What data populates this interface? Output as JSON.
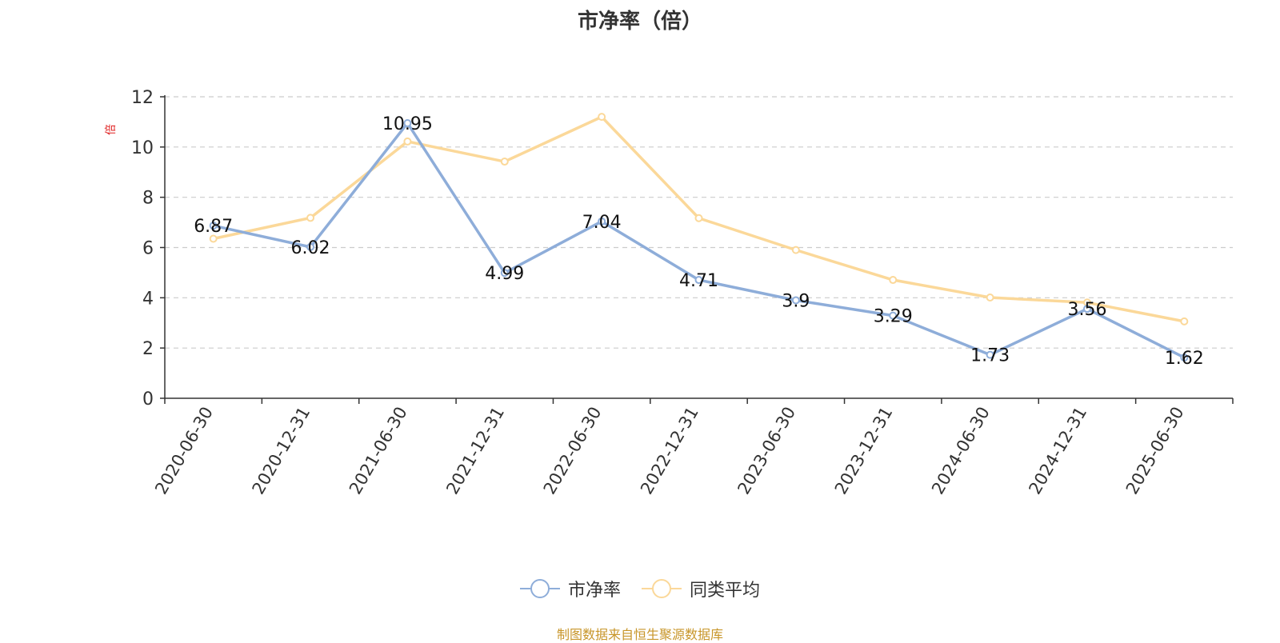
{
  "chart_data": {
    "type": "line",
    "title": "市净率（倍）",
    "ylabel": "倍",
    "xlabel": "",
    "categories": [
      "2020-06-30",
      "2020-12-31",
      "2021-06-30",
      "2021-12-31",
      "2022-06-30",
      "2022-12-31",
      "2023-06-30",
      "2023-12-31",
      "2024-06-30",
      "2024-12-31",
      "2025-06-30"
    ],
    "ylim": [
      0,
      12
    ],
    "yticks": [
      0,
      2,
      4,
      6,
      8,
      10,
      12
    ],
    "grid": true,
    "legend_position": "bottom",
    "series": [
      {
        "name": "市净率",
        "color": "#8eadd9",
        "show_labels": true,
        "values": [
          6.87,
          6.02,
          10.95,
          4.99,
          7.04,
          4.71,
          3.9,
          3.29,
          1.73,
          3.56,
          1.62
        ]
      },
      {
        "name": "同类平均",
        "color": "#fbd899",
        "show_labels": false,
        "values": [
          6.35,
          7.18,
          10.22,
          9.42,
          11.2,
          7.17,
          5.9,
          4.71,
          4.01,
          3.81,
          3.06
        ]
      }
    ]
  },
  "footer": {
    "source": "制图数据来自恒生聚源数据库"
  },
  "colors": {
    "axis": "#333333",
    "grid": "#cccccc",
    "unit_label": "#e02020",
    "source_text": "#c8962a"
  }
}
